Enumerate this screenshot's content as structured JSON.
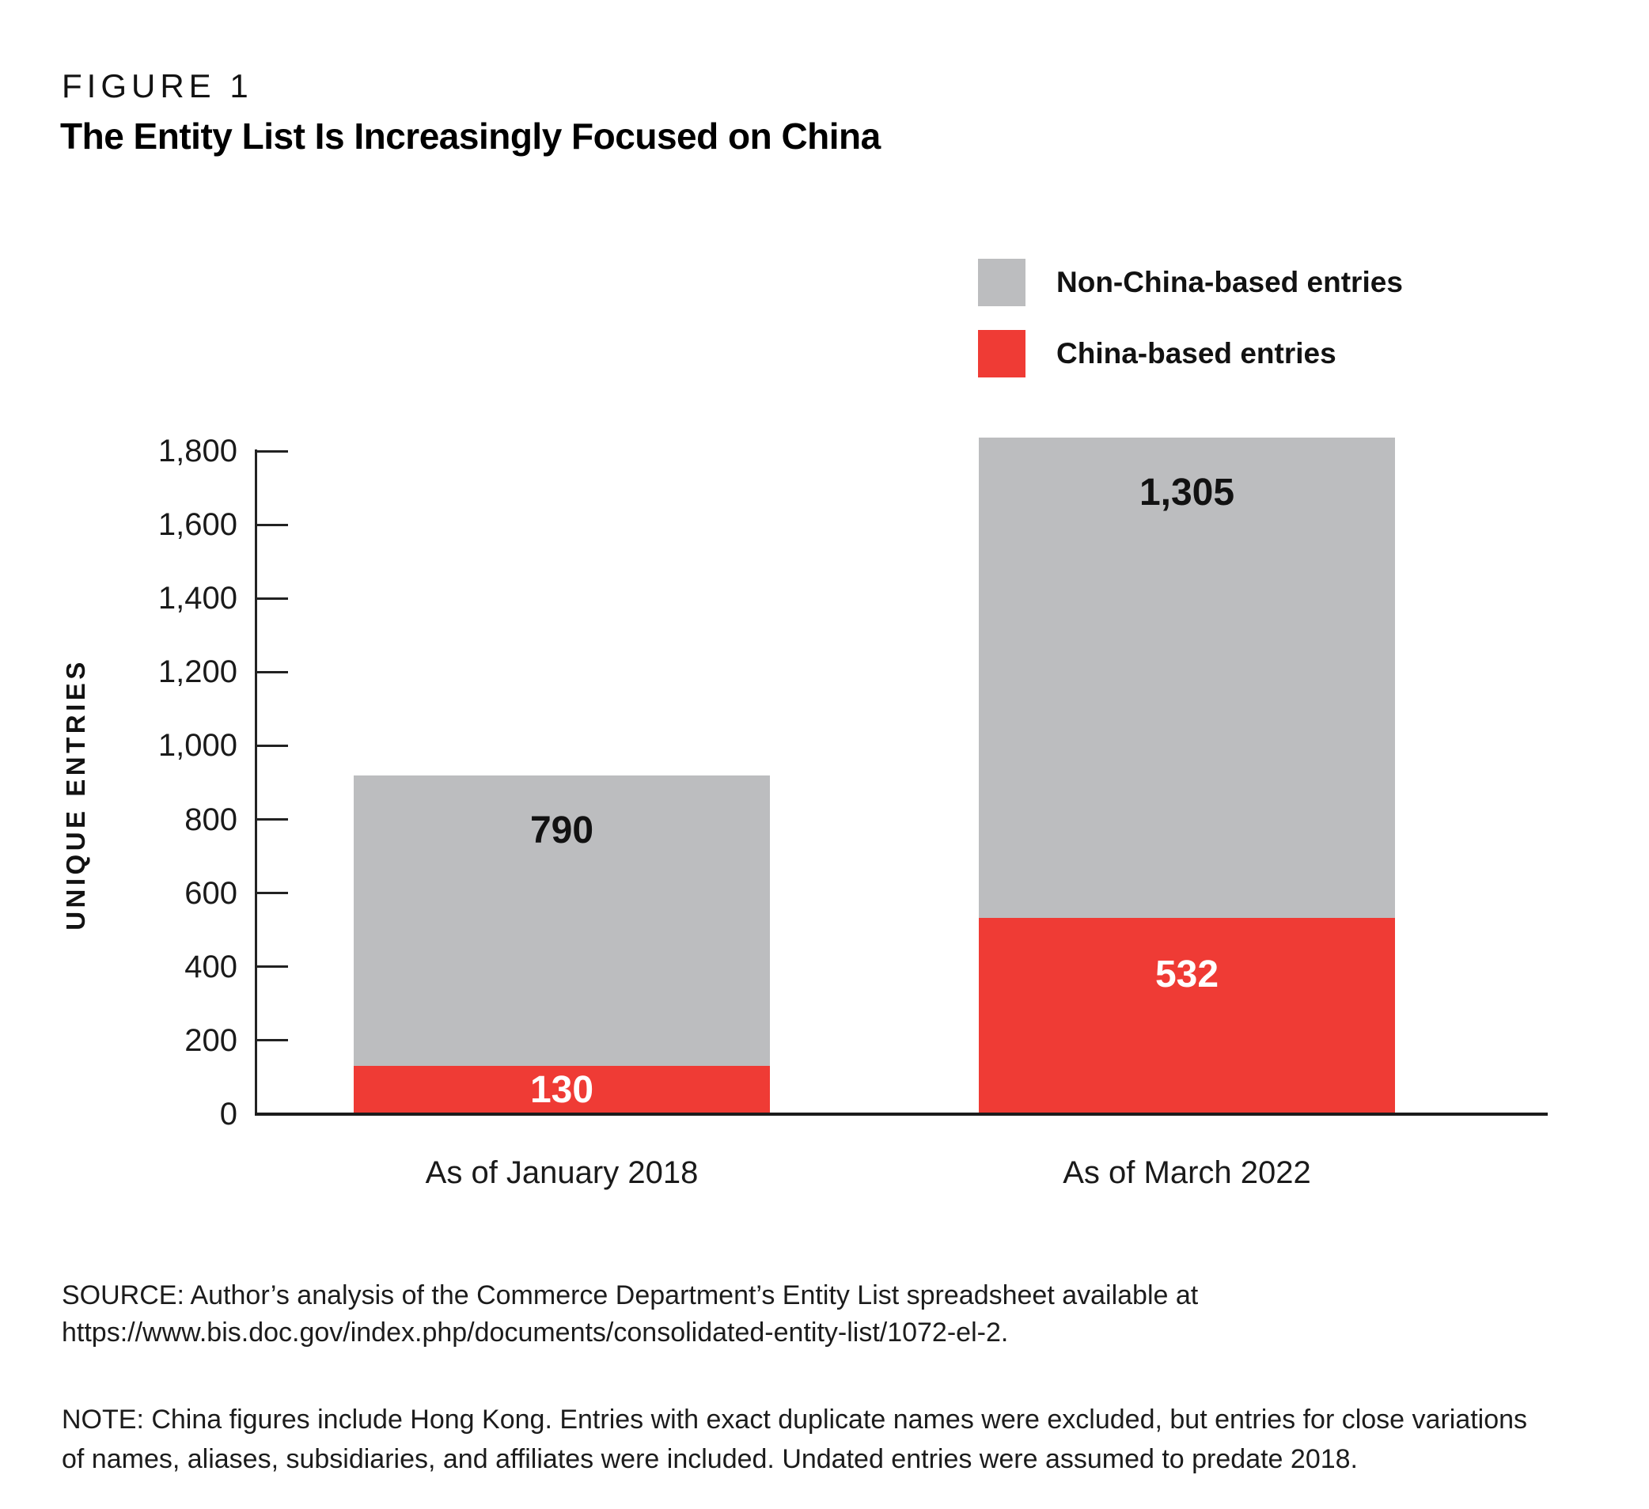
{
  "figure": {
    "label": "FIGURE 1",
    "title": "The Entity List Is Increasingly Focused on China"
  },
  "legend": {
    "items": [
      {
        "label": "Non-China-based entries",
        "color": "#bcbdbf"
      },
      {
        "label": "China-based entries",
        "color": "#ef3b35"
      }
    ]
  },
  "chart_data": {
    "type": "bar",
    "stacked": true,
    "categories": [
      "As of January 2018",
      "As of March 2022"
    ],
    "series": [
      {
        "name": "China-based entries",
        "color": "#ef3b35",
        "values": [
          130,
          532
        ],
        "label_color": "#ffffff"
      },
      {
        "name": "Non-China-based entries",
        "color": "#bcbdbf",
        "values": [
          790,
          1305
        ],
        "label_color": "#121212"
      }
    ],
    "data_labels": {
      "china": [
        "130",
        "532"
      ],
      "non_china": [
        "790",
        "1,305"
      ]
    },
    "totals": [
      920,
      1837
    ],
    "ylabel": "UNIQUE ENTRIES",
    "xlabel": "",
    "ylim": [
      0,
      1800
    ],
    "ytick_interval": 200,
    "ytick_labels": [
      "0",
      "200",
      "400",
      "600",
      "800",
      "1,000",
      "1,200",
      "1,400",
      "1,600",
      "1,800"
    ],
    "grid": false,
    "legend_position": "top-right"
  },
  "source": {
    "lines": [
      "SOURCE: Author’s analysis of the Commerce Department’s Entity List spreadsheet available at",
      "https://www.bis.doc.gov/index.php/documents/consolidated-entity-list/1072-el-2."
    ]
  },
  "note": {
    "lines": [
      "NOTE: China figures include Hong Kong. Entries with exact duplicate names were excluded, but entries for close variations",
      "of names, aliases, subsidiaries, and affiliates were included. Undated entries were assumed to predate 2018."
    ]
  }
}
